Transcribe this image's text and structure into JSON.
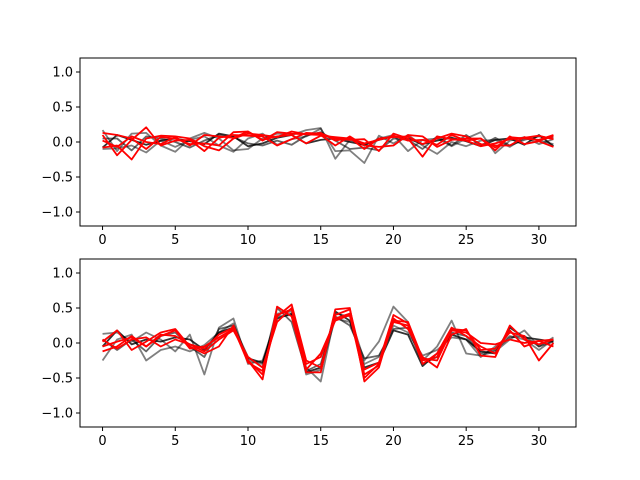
{
  "colors": {
    "background": "#ffffff",
    "axes": "#000000",
    "black_series": "#000000",
    "red_series": "#ff0000"
  },
  "chart_data": [
    {
      "type": "line",
      "panel": "top",
      "title": "",
      "xlabel": "",
      "ylabel": "",
      "xlim": [
        -1.55,
        32.55
      ],
      "ylim": [
        -1.2,
        1.2
      ],
      "xticks": [
        0,
        5,
        10,
        15,
        20,
        25,
        30
      ],
      "yticks": [
        -1.0,
        -0.5,
        0.0,
        0.5,
        1.0
      ],
      "xtick_labels": [
        "0",
        "5",
        "10",
        "15",
        "20",
        "25",
        "30"
      ],
      "ytick_labels": [
        "−1.0",
        "−0.5",
        "0.0",
        "0.5",
        "1.0"
      ],
      "grid": false,
      "x": [
        0,
        1,
        2,
        3,
        4,
        5,
        6,
        7,
        8,
        9,
        10,
        11,
        12,
        13,
        14,
        15,
        16,
        17,
        18,
        19,
        20,
        21,
        22,
        23,
        24,
        25,
        26,
        27,
        28,
        29,
        30,
        31
      ],
      "series": [
        {
          "color": "#000000",
          "alpha": 0.5,
          "values": [
            0.17,
            -0.13,
            0.12,
            0.13,
            -0.05,
            -0.14,
            0.05,
            0.13,
            0.05,
            -0.12,
            -0.1,
            0.05,
            0.12,
            0.1,
            0.17,
            0.2,
            -0.24,
            0.03,
            -0.05,
            0.05,
            0.1,
            -0.13,
            0.03,
            0.05,
            -0.06,
            0.05,
            0.14,
            -0.16,
            0.02,
            0.07,
            -0.03,
            0.04
          ]
        },
        {
          "color": "#000000",
          "alpha": 0.5,
          "values": [
            -0.1,
            -0.09,
            -0.05,
            -0.15,
            0.02,
            -0.07,
            0.03,
            0.08,
            -0.05,
            -0.14,
            0.05,
            0.12,
            -0.04,
            0.04,
            0.08,
            0.19,
            -0.13,
            -0.12,
            -0.3,
            0.09,
            -0.02,
            0.1,
            -0.05,
            -0.17,
            0.0,
            -0.06,
            0.02,
            0.03,
            -0.07,
            0.06,
            0.02,
            -0.03
          ]
        },
        {
          "color": "#000000",
          "alpha": 0.6,
          "values": [
            0.05,
            0.05,
            -0.12,
            0.08,
            0.05,
            0.0,
            -0.08,
            0.02,
            0.1,
            0.07,
            -0.02,
            -0.05,
            0.02,
            -0.04,
            0.09,
            0.14,
            0.02,
            -0.1,
            -0.08,
            -0.12,
            0.05,
            0.03,
            -0.1,
            0.08,
            -0.05,
            0.1,
            -0.05,
            0.06,
            -0.05,
            0.03,
            0.08,
            0.05
          ]
        },
        {
          "color": "#000000",
          "alpha": 0.8,
          "values": [
            -0.08,
            0.1,
            0.03,
            -0.04,
            0.02,
            0.05,
            0.01,
            -0.03,
            0.12,
            0.08,
            -0.06,
            -0.02,
            0.06,
            0.1,
            -0.02,
            0.03,
            0.05,
            0.0,
            -0.04,
            0.03,
            0.08,
            0.05,
            -0.03,
            0.02,
            0.06,
            0.01,
            -0.06,
            0.03,
            0.05,
            -0.04,
            0.1,
            -0.06
          ]
        },
        {
          "color": "#ff0000",
          "alpha": 1.0,
          "values": [
            0.13,
            0.1,
            0.05,
            -0.1,
            0.07,
            0.05,
            -0.03,
            -0.02,
            -0.05,
            0.14,
            0.15,
            0.02,
            0.14,
            0.12,
            0.11,
            0.13,
            0.02,
            0.06,
            -0.1,
            0.05,
            0.07,
            0.08,
            -0.03,
            0.05,
            0.12,
            0.08,
            -0.03,
            -0.05,
            -0.05,
            0.07,
            0.02,
            0.08
          ]
        },
        {
          "color": "#ff0000",
          "alpha": 1.0,
          "values": [
            0.1,
            -0.19,
            0.03,
            0.21,
            -0.05,
            0.02,
            0.03,
            -0.13,
            0.06,
            0.1,
            0.09,
            0.08,
            -0.05,
            0.04,
            0.13,
            0.12,
            0.05,
            0.03,
            0.04,
            -0.13,
            0.12,
            0.05,
            -0.21,
            0.08,
            0.04,
            0.02,
            0.05,
            -0.08,
            0.07,
            0.05,
            0.03,
            0.1
          ]
        },
        {
          "color": "#ff0000",
          "alpha": 1.0,
          "values": [
            -0.08,
            -0.05,
            -0.25,
            0.05,
            0.09,
            0.08,
            0.05,
            -0.06,
            -0.12,
            0.05,
            0.12,
            0.1,
            0.07,
            0.15,
            0.11,
            0.1,
            -0.05,
            0.08,
            -0.05,
            -0.07,
            -0.05,
            0.1,
            0.08,
            -0.07,
            0.03,
            0.05,
            0.05,
            -0.12,
            0.08,
            -0.03,
            0.01,
            -0.07
          ]
        },
        {
          "color": "#ff0000",
          "alpha": 1.0,
          "values": [
            0.02,
            -0.07,
            0.08,
            0.0,
            -0.03,
            0.07,
            -0.05,
            0.1,
            0.08,
            0.06,
            0.15,
            0.03,
            0.08,
            0.1,
            -0.02,
            0.09,
            0.07,
            0.05,
            -0.02,
            0.03,
            0.09,
            0.02,
            0.03,
            -0.04,
            0.1,
            0.02,
            -0.06,
            -0.02,
            0.04,
            0.06,
            0.09,
            0.04
          ]
        }
      ]
    },
    {
      "type": "line",
      "panel": "bottom",
      "title": "",
      "xlabel": "",
      "ylabel": "",
      "xlim": [
        -1.55,
        32.55
      ],
      "ylim": [
        -1.2,
        1.2
      ],
      "xticks": [
        0,
        5,
        10,
        15,
        20,
        25,
        30
      ],
      "yticks": [
        -1.0,
        -0.5,
        0.0,
        0.5,
        1.0
      ],
      "xtick_labels": [
        "0",
        "5",
        "10",
        "15",
        "20",
        "25",
        "30"
      ],
      "ytick_labels": [
        "−1.0",
        "−0.5",
        "0.0",
        "0.5",
        "1.0"
      ],
      "grid": false,
      "x": [
        0,
        1,
        2,
        3,
        4,
        5,
        6,
        7,
        8,
        9,
        10,
        11,
        12,
        13,
        14,
        15,
        16,
        17,
        18,
        19,
        20,
        21,
        22,
        23,
        24,
        25,
        26,
        27,
        28,
        29,
        30,
        31
      ],
      "series": [
        {
          "color": "#000000",
          "alpha": 0.5,
          "values": [
            0.13,
            0.15,
            0.02,
            0.15,
            0.05,
            -0.12,
            0.12,
            -0.45,
            0.22,
            0.35,
            -0.3,
            -0.25,
            0.38,
            0.4,
            -0.35,
            -0.55,
            0.42,
            0.38,
            -0.25,
            0.02,
            0.52,
            0.3,
            -0.25,
            -0.05,
            0.32,
            -0.15,
            -0.18,
            -0.12,
            0.05,
            0.18,
            -0.05,
            0.08
          ]
        },
        {
          "color": "#000000",
          "alpha": 0.5,
          "values": [
            -0.25,
            0.05,
            0.12,
            -0.25,
            -0.1,
            -0.05,
            -0.12,
            -0.03,
            0.15,
            0.28,
            -0.25,
            -0.3,
            0.42,
            0.45,
            -0.45,
            -0.38,
            0.35,
            0.3,
            -0.3,
            -0.2,
            0.25,
            0.15,
            -0.18,
            -0.1,
            0.08,
            0.05,
            -0.2,
            -0.05,
            0.1,
            0.05,
            -0.1,
            0.05
          ]
        },
        {
          "color": "#000000",
          "alpha": 0.6,
          "values": [
            0.05,
            -0.1,
            0.05,
            -0.12,
            0.1,
            0.15,
            -0.05,
            -0.2,
            0.2,
            0.25,
            -0.2,
            -0.35,
            0.5,
            0.3,
            -0.4,
            -0.3,
            0.38,
            0.25,
            -0.22,
            -0.18,
            0.2,
            0.22,
            -0.3,
            -0.2,
            0.15,
            0.1,
            -0.15,
            -0.1,
            0.08,
            0.1,
            -0.05,
            0.02
          ]
        },
        {
          "color": "#000000",
          "alpha": 0.8,
          "values": [
            -0.05,
            0.18,
            -0.02,
            0.05,
            0.02,
            0.08,
            0.05,
            -0.1,
            0.15,
            0.22,
            -0.22,
            -0.28,
            0.35,
            0.42,
            -0.42,
            -0.35,
            0.45,
            0.32,
            -0.35,
            -0.28,
            0.18,
            0.12,
            -0.33,
            -0.15,
            0.12,
            0.05,
            -0.12,
            -0.15,
            0.22,
            0.08,
            0.05,
            0.02
          ]
        },
        {
          "color": "#ff0000",
          "alpha": 1.0,
          "values": [
            0.02,
            0.18,
            -0.1,
            0.02,
            0.15,
            0.2,
            -0.05,
            -0.15,
            -0.05,
            0.25,
            -0.25,
            -0.52,
            0.52,
            0.38,
            -0.42,
            -0.42,
            0.48,
            0.5,
            -0.55,
            -0.35,
            0.35,
            0.2,
            -0.2,
            -0.35,
            0.12,
            0.2,
            -0.18,
            -0.2,
            0.25,
            0.05,
            -0.02,
            0.05
          ]
        },
        {
          "color": "#ff0000",
          "alpha": 1.0,
          "values": [
            -0.12,
            -0.05,
            0.1,
            -0.05,
            0.1,
            0.18,
            -0.08,
            -0.05,
            0.08,
            0.2,
            -0.25,
            -0.45,
            0.38,
            0.55,
            -0.25,
            -0.35,
            0.4,
            0.48,
            -0.38,
            -0.28,
            0.4,
            0.28,
            -0.3,
            -0.15,
            0.22,
            0.1,
            -0.05,
            -0.15,
            0.18,
            -0.05,
            0.03,
            -0.05
          ]
        },
        {
          "color": "#ff0000",
          "alpha": 1.0,
          "values": [
            0.05,
            -0.08,
            0.05,
            0.08,
            -0.05,
            0.05,
            -0.02,
            -0.08,
            0.12,
            0.22,
            -0.28,
            -0.4,
            0.4,
            0.48,
            -0.38,
            -0.15,
            0.32,
            0.4,
            -0.5,
            -0.3,
            0.3,
            0.25,
            -0.25,
            -0.2,
            0.2,
            0.18,
            -0.1,
            -0.08,
            0.15,
            0.1,
            -0.25,
            0.0
          ]
        },
        {
          "color": "#ff0000",
          "alpha": 1.0,
          "values": [
            -0.05,
            0.02,
            0.08,
            -0.05,
            0.12,
            0.1,
            -0.02,
            -0.12,
            0.05,
            0.18,
            -0.2,
            -0.35,
            0.3,
            0.5,
            -0.3,
            -0.2,
            0.35,
            0.42,
            -0.45,
            -0.32,
            0.32,
            0.3,
            -0.22,
            -0.25,
            0.18,
            0.15,
            0.0,
            -0.02,
            0.05,
            0.0,
            0.03,
            0.05
          ]
        }
      ]
    }
  ]
}
